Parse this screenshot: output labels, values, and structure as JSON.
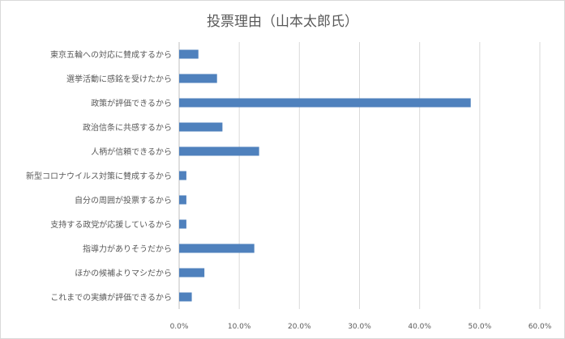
{
  "chart_data": {
    "type": "bar",
    "orientation": "horizontal",
    "title": "投票理由（山本太郎氏）",
    "xlabel": "",
    "ylabel": "",
    "xlim": [
      0,
      60
    ],
    "ticks": [
      "0.0%",
      "10.0%",
      "20.0%",
      "30.0%",
      "40.0%",
      "50.0%",
      "60.0%"
    ],
    "grid": true,
    "color": "#4f81bd",
    "categories": [
      "東京五輪への対応に賛成するから",
      "選挙活動に感銘を受けたから",
      "政策が評価できるから",
      "政治信条に共感するから",
      "人柄が信頼できるから",
      "新型コロナウイルス対策に賛成するから",
      "自分の周囲が投票するから",
      "支持する政党が応援しているから",
      "指導力がありそうだから",
      "ほかの候補よりマシだから",
      "これまでの実績が評価できるから"
    ],
    "values": [
      3.2,
      6.3,
      48.5,
      7.2,
      13.3,
      1.2,
      1.2,
      1.2,
      12.5,
      4.2,
      2.1
    ]
  }
}
